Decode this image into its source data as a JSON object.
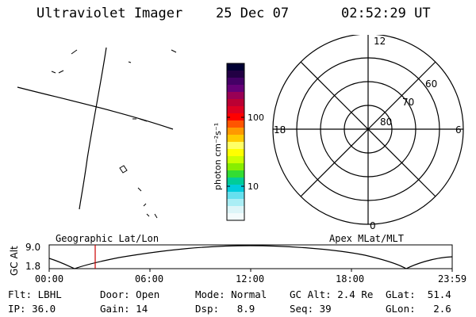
{
  "header": {
    "instrument": "Ultraviolet Imager",
    "date": "25 Dec 07",
    "time": "02:52:29 UT"
  },
  "colorbar": {
    "unit_label": "photon cm⁻²s⁻¹",
    "tick_labels": [
      "100",
      "10"
    ],
    "colors": [
      "#000033",
      "#220044",
      "#440066",
      "#660077",
      "#990055",
      "#bb0033",
      "#dd0022",
      "#ff0000",
      "#ff5500",
      "#ff9900",
      "#ffcc00",
      "#ffff66",
      "#ffff00",
      "#ccff00",
      "#88ee00",
      "#33dd33",
      "#00cc99",
      "#00ccdd",
      "#66e0ee",
      "#aaeef5",
      "#ddf5f8",
      "#f3fbfc"
    ]
  },
  "polar_plot": {
    "lat_labels": [
      "80",
      "70",
      "60"
    ],
    "mlt_labels": {
      "top": "12",
      "left": "18",
      "right": "6",
      "bottom": "0"
    }
  },
  "map_panel": {
    "left_label": "Geographic Lat/Lon",
    "right_label": "Apex MLat/MLT"
  },
  "altitude_plot": {
    "ylabel": "GC Alt",
    "y_tick_labels": [
      "9.0",
      "1.8"
    ],
    "time_labels": [
      "00:00",
      "06:00",
      "12:00",
      "18:00",
      "23:59"
    ],
    "marker_color": "#cc0000"
  },
  "info": {
    "flt_label": "Flt:",
    "flt_value": "LBHL",
    "ip_label": "IP:",
    "ip_value": "36.0",
    "door_label": "Door:",
    "door_value": "Open",
    "gain_label": "Gain:",
    "gain_value": "14",
    "mode_label": "Mode:",
    "mode_value": "Normal",
    "dsp_label": "Dsp:",
    "dsp_value": "8.9",
    "gcalt_label": "GC Alt:",
    "gcalt_value": "2.4 Re",
    "seq_label": "Seq:",
    "seq_value": "39",
    "glat_label": "GLat:",
    "glat_value": "51.4",
    "glon_label": "GLon:",
    "glon_value": "2.6"
  }
}
